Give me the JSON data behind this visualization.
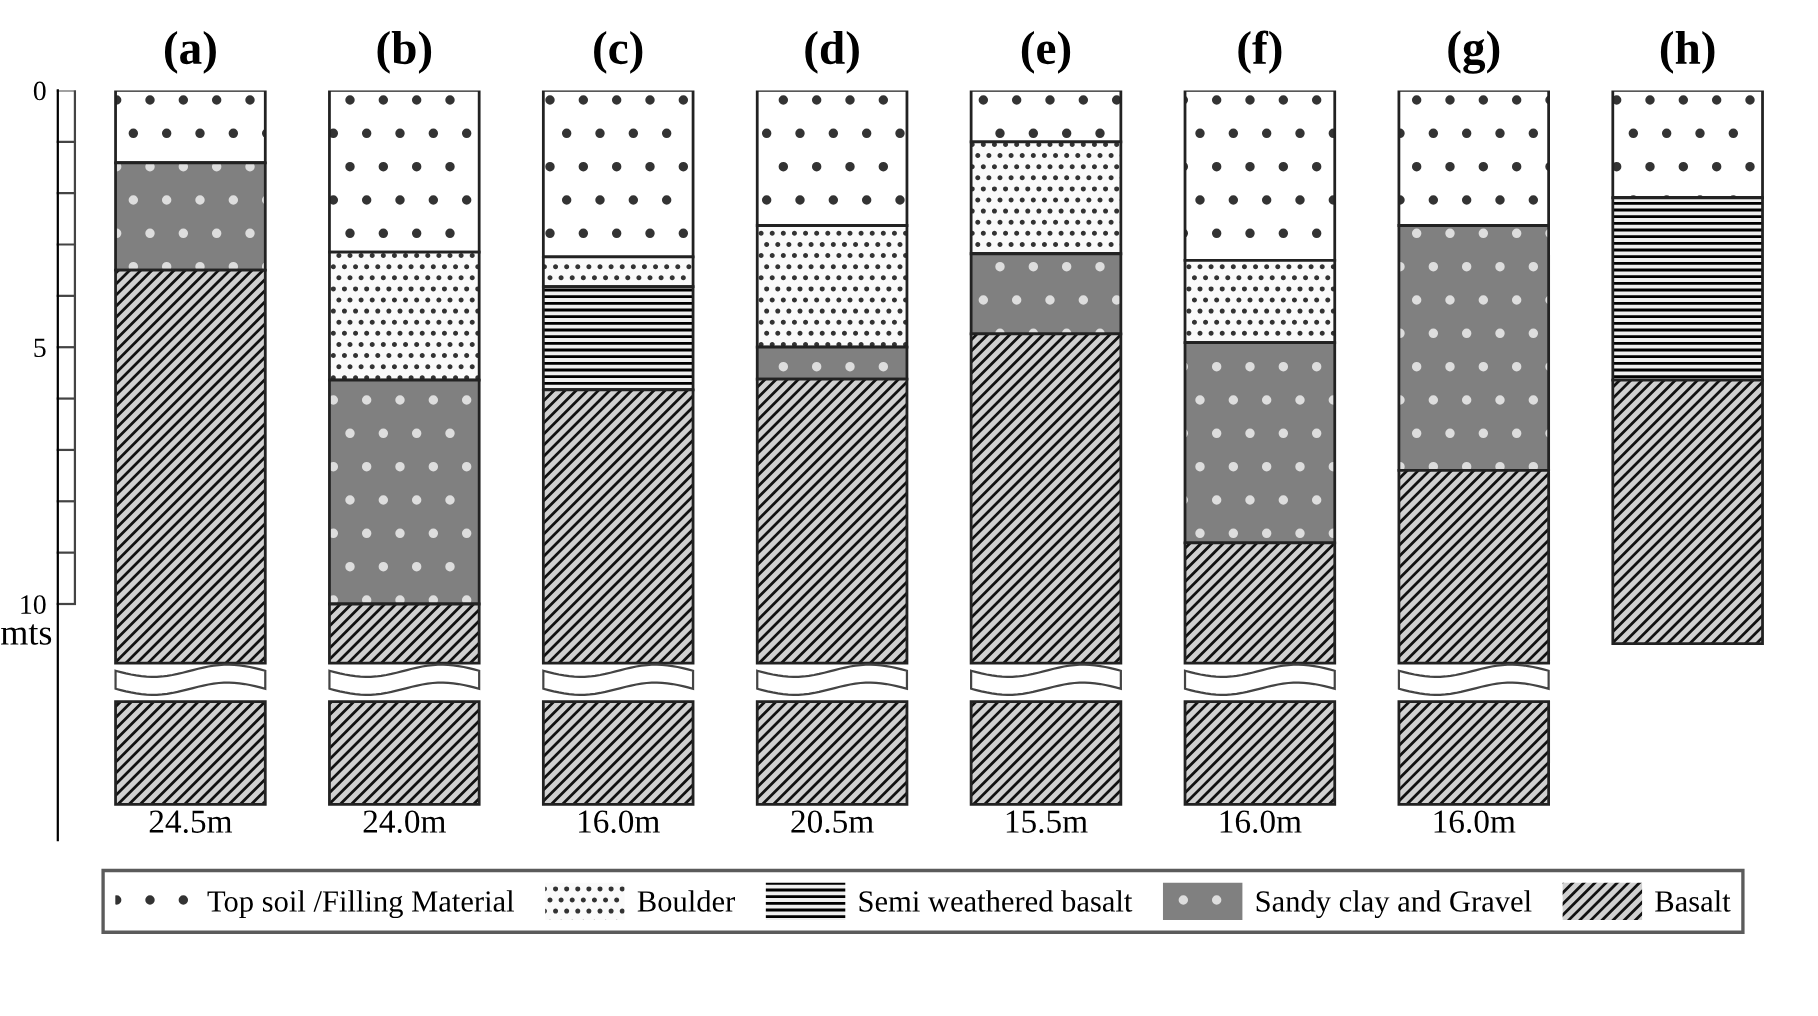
{
  "chart_data": {
    "type": "bar",
    "stacked": true,
    "categories": [
      "(a)",
      "(b)",
      "(c)",
      "(d)",
      "(e)",
      "(f)",
      "(g)",
      "(h)"
    ],
    "ylabel": "mts",
    "ylim": [
      14.6,
      0
    ],
    "yticks": [
      0,
      5,
      10
    ],
    "grid": false,
    "legend": "bottom",
    "series": [
      {
        "name": "Top soil /Filling Material",
        "color": "#ffffff",
        "values": [
          1.41,
          3.15,
          3.24,
          2.63,
          1.0,
          3.31,
          2.63,
          2.09
        ]
      },
      {
        "name": "Boulder",
        "color": "#fafafa",
        "values": [
          null,
          2.49,
          0.58,
          2.37,
          2.18,
          1.6,
          null,
          null
        ]
      },
      {
        "name": "Semi weathered basalt",
        "color": "#f0f0f0",
        "values": [
          null,
          null,
          2.01,
          null,
          null,
          null,
          null,
          3.55
        ]
      },
      {
        "name": "Sandy clay and Gravel",
        "color": "#808080",
        "values": [
          2.09,
          4.36,
          null,
          0.62,
          1.56,
          3.9,
          4.77,
          null
        ]
      },
      {
        "name": "Basalt",
        "color": "#d0d0d0",
        "values": [
          7.65,
          1.15,
          5.32,
          5.53,
          6.41,
          2.34,
          3.75,
          5.13
        ]
      }
    ],
    "annotations": [
      "24.5m",
      "24.0m",
      "16.0m",
      "20.5m",
      "15.5m",
      "16.0m",
      "16.0m"
    ]
  }
}
